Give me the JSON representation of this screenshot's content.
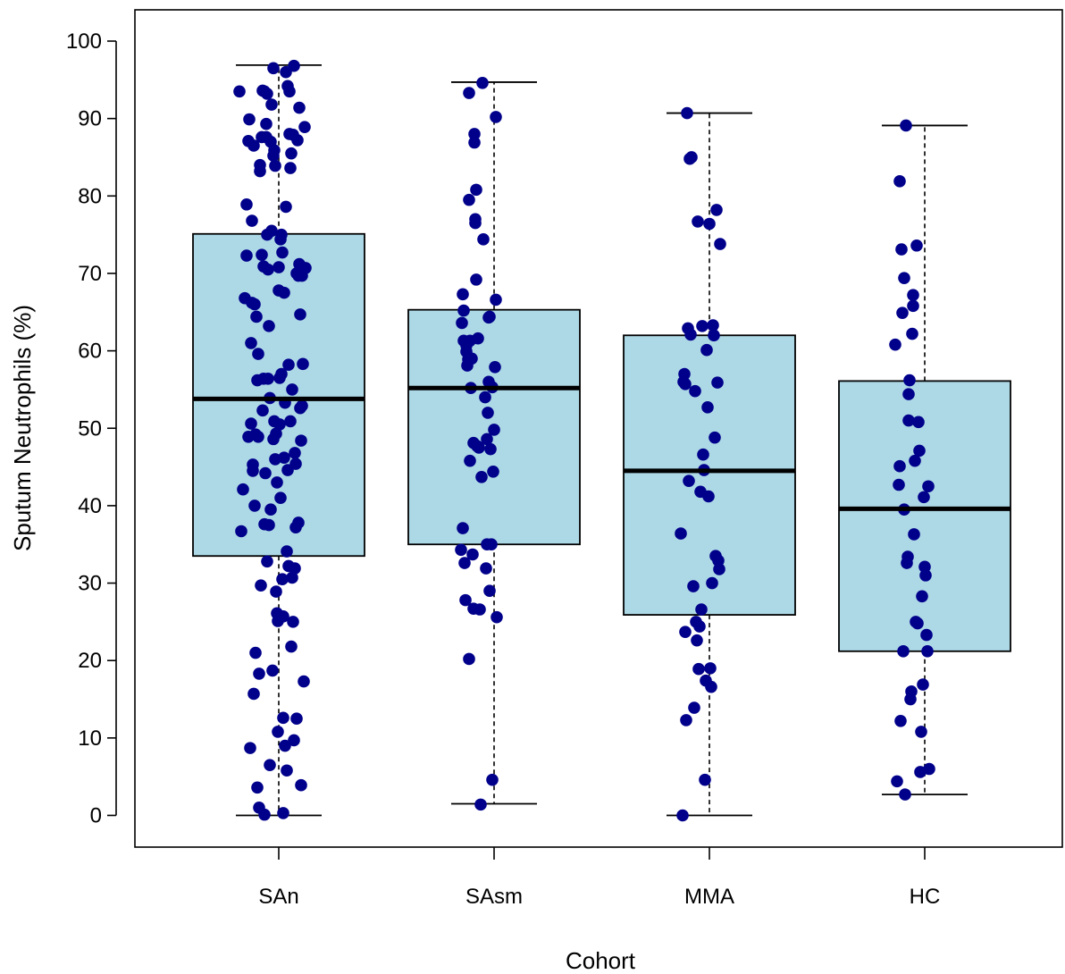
{
  "chart_data": {
    "type": "box",
    "title": "",
    "xlabel": "Cohort",
    "ylabel": "Sputum Neutrophils (%)",
    "ylim": [
      -4,
      108
    ],
    "yticks": [
      0,
      10,
      20,
      30,
      40,
      50,
      60,
      70,
      80,
      90,
      100
    ],
    "categories": [
      "SAn",
      "SAsm",
      "MMA",
      "HC"
    ],
    "colors": {
      "box_fill": "#add8e6",
      "point": "#00008b",
      "line": "#000000"
    },
    "boxes": [
      {
        "name": "SAn",
        "whisker_low": 0,
        "q1": 33.5,
        "median": 53.8,
        "q3": 75.1,
        "whisker_high": 96.9
      },
      {
        "name": "SAsm",
        "whisker_low": 1.5,
        "q1": 35.0,
        "median": 55.2,
        "q3": 65.3,
        "whisker_high": 94.7
      },
      {
        "name": "MMA",
        "whisker_low": 0,
        "q1": 25.9,
        "median": 44.5,
        "q3": 62.0,
        "whisker_high": 90.7
      },
      {
        "name": "HC",
        "whisker_low": 2.7,
        "q1": 21.2,
        "median": 39.6,
        "q3": 56.1,
        "whisker_high": 89.1
      }
    ],
    "points": [
      [
        [
          -0.44,
          93.5
        ],
        [
          -0.42,
          36.7
        ],
        [
          -0.4,
          42.1
        ],
        [
          -0.38,
          66.8
        ],
        [
          -0.36,
          78.9
        ],
        [
          -0.36,
          72.3
        ],
        [
          -0.34,
          48.9
        ],
        [
          -0.34,
          87.1
        ],
        [
          -0.33,
          89.9
        ],
        [
          -0.32,
          8.7
        ],
        [
          -0.31,
          50.6
        ],
        [
          -0.31,
          61.0
        ],
        [
          -0.3,
          66.2
        ],
        [
          -0.3,
          76.8
        ],
        [
          -0.29,
          44.5
        ],
        [
          -0.29,
          45.3
        ],
        [
          -0.28,
          15.7
        ],
        [
          -0.28,
          86.5
        ],
        [
          -0.27,
          40.0
        ],
        [
          -0.27,
          66.0
        ],
        [
          -0.26,
          49.2
        ],
        [
          -0.26,
          21.0
        ],
        [
          -0.25,
          64.4
        ],
        [
          -0.24,
          56.2
        ],
        [
          -0.24,
          3.6
        ],
        [
          -0.23,
          59.6
        ],
        [
          -0.23,
          48.9
        ],
        [
          -0.22,
          18.3
        ],
        [
          -0.22,
          1.0
        ],
        [
          -0.21,
          83.2
        ],
        [
          -0.21,
          84.0
        ],
        [
          -0.2,
          29.7
        ],
        [
          -0.19,
          87.6
        ],
        [
          -0.19,
          72.4
        ],
        [
          -0.18,
          93.6
        ],
        [
          -0.18,
          52.3
        ],
        [
          -0.17,
          70.9
        ],
        [
          -0.17,
          56.4
        ],
        [
          -0.16,
          37.6
        ],
        [
          -0.16,
          93.5
        ],
        [
          -0.16,
          0.1
        ],
        [
          -0.15,
          44.2
        ],
        [
          -0.14,
          89.3
        ],
        [
          -0.14,
          87.6
        ],
        [
          -0.13,
          93.2
        ],
        [
          -0.13,
          75.0
        ],
        [
          -0.13,
          32.8
        ],
        [
          -0.12,
          70.5
        ],
        [
          -0.12,
          56.4
        ],
        [
          -0.11,
          63.2
        ],
        [
          -0.11,
          37.5
        ],
        [
          -0.1,
          53.9
        ],
        [
          -0.1,
          6.5
        ],
        [
          -0.09,
          87.0
        ],
        [
          -0.09,
          39.5
        ],
        [
          -0.08,
          91.8
        ],
        [
          -0.08,
          75.5
        ],
        [
          -0.07,
          18.7
        ],
        [
          -0.06,
          85.2
        ],
        [
          -0.06,
          48.6
        ],
        [
          -0.06,
          96.5
        ],
        [
          -0.05,
          85.9
        ],
        [
          -0.05,
          50.9
        ],
        [
          -0.04,
          83.9
        ],
        [
          -0.04,
          46.0
        ],
        [
          -0.03,
          49.3
        ],
        [
          -0.03,
          28.9
        ],
        [
          -0.02,
          26.1
        ],
        [
          -0.02,
          43.0
        ],
        [
          -0.01,
          25.1
        ],
        [
          -0.01,
          10.8
        ],
        [
          0.0,
          67.8
        ],
        [
          0.0,
          70.8
        ],
        [
          0.01,
          56.5
        ],
        [
          0.01,
          50.5
        ],
        [
          0.02,
          41.0
        ],
        [
          0.02,
          74.4
        ],
        [
          0.03,
          75.0
        ],
        [
          0.03,
          57.0
        ],
        [
          0.04,
          72.7
        ],
        [
          0.04,
          30.5
        ],
        [
          0.05,
          25.7
        ],
        [
          0.05,
          12.6
        ],
        [
          0.05,
          0.3
        ],
        [
          0.06,
          46.2
        ],
        [
          0.06,
          67.5
        ],
        [
          0.07,
          53.3
        ],
        [
          0.07,
          9.0
        ],
        [
          0.08,
          78.6
        ],
        [
          0.08,
          96.0
        ],
        [
          0.09,
          34.1
        ],
        [
          0.09,
          5.8
        ],
        [
          0.1,
          44.6
        ],
        [
          0.1,
          94.2
        ],
        [
          0.11,
          58.2
        ],
        [
          0.11,
          32.2
        ],
        [
          0.12,
          88.0
        ],
        [
          0.12,
          93.5
        ],
        [
          0.13,
          83.6
        ],
        [
          0.13,
          50.9
        ],
        [
          0.14,
          85.5
        ],
        [
          0.14,
          21.8
        ],
        [
          0.15,
          30.7
        ],
        [
          0.15,
          55.0
        ],
        [
          0.16,
          87.9
        ],
        [
          0.16,
          25.0
        ],
        [
          0.17,
          9.7
        ],
        [
          0.17,
          96.8
        ],
        [
          0.18,
          31.9
        ],
        [
          0.18,
          46.8
        ],
        [
          0.19,
          45.4
        ],
        [
          0.19,
          37.2
        ],
        [
          0.2,
          70.0
        ],
        [
          0.2,
          12.5
        ],
        [
          0.21,
          87.2
        ],
        [
          0.22,
          69.7
        ],
        [
          0.22,
          37.8
        ],
        [
          0.23,
          91.4
        ],
        [
          0.23,
          71.2
        ],
        [
          0.24,
          64.7
        ],
        [
          0.24,
          52.6
        ],
        [
          0.25,
          48.4
        ],
        [
          0.25,
          3.9
        ],
        [
          0.26,
          52.9
        ],
        [
          0.26,
          69.7
        ],
        [
          0.27,
          58.3
        ],
        [
          0.28,
          17.3
        ],
        [
          0.29,
          88.9
        ],
        [
          0.3,
          70.7
        ]
      ],
      [
        [
          -0.37,
          34.3
        ],
        [
          -0.36,
          63.6
        ],
        [
          -0.35,
          67.3
        ],
        [
          -0.35,
          37.1
        ],
        [
          -0.34,
          65.2
        ],
        [
          -0.34,
          61.3
        ],
        [
          -0.33,
          32.6
        ],
        [
          -0.32,
          27.8
        ],
        [
          -0.31,
          59.9
        ],
        [
          -0.31,
          60.7
        ],
        [
          -0.3,
          58.1
        ],
        [
          -0.29,
          58.9
        ],
        [
          -0.28,
          93.3
        ],
        [
          -0.28,
          20.2
        ],
        [
          -0.28,
          79.5
        ],
        [
          -0.27,
          45.8
        ],
        [
          -0.27,
          61.3
        ],
        [
          -0.26,
          55.2
        ],
        [
          -0.25,
          59.0
        ],
        [
          -0.24,
          33.7
        ],
        [
          -0.23,
          48.1
        ],
        [
          -0.23,
          26.7
        ],
        [
          -0.22,
          88.0
        ],
        [
          -0.22,
          86.9
        ],
        [
          -0.21,
          77.0
        ],
        [
          -0.21,
          76.5
        ],
        [
          -0.2,
          80.8
        ],
        [
          -0.2,
          69.2
        ],
        [
          -0.19,
          47.7
        ],
        [
          -0.18,
          61.6
        ],
        [
          -0.17,
          47.5
        ],
        [
          -0.16,
          26.6
        ],
        [
          -0.15,
          1.4
        ],
        [
          -0.14,
          43.7
        ],
        [
          -0.13,
          94.6
        ],
        [
          -0.12,
          74.4
        ],
        [
          -0.1,
          54.0
        ],
        [
          -0.09,
          31.9
        ],
        [
          -0.08,
          48.6
        ],
        [
          -0.08,
          35.0
        ],
        [
          -0.07,
          52.0
        ],
        [
          -0.06,
          64.3
        ],
        [
          -0.06,
          56.0
        ],
        [
          -0.05,
          64.4
        ],
        [
          -0.05,
          29.0
        ],
        [
          -0.04,
          47.3
        ],
        [
          -0.03,
          35.0
        ],
        [
          -0.02,
          4.6
        ],
        [
          -0.02,
          55.3
        ],
        [
          -0.01,
          44.4
        ],
        [
          0.0,
          49.8
        ],
        [
          0.01,
          57.9
        ],
        [
          0.02,
          66.6
        ],
        [
          0.02,
          90.2
        ],
        [
          0.03,
          25.6
        ]
      ],
      [
        [
          -0.32,
          36.4
        ],
        [
          -0.3,
          0.0
        ],
        [
          -0.29,
          56.0
        ],
        [
          -0.28,
          57.0
        ],
        [
          -0.27,
          55.7
        ],
        [
          -0.27,
          23.7
        ],
        [
          -0.26,
          12.3
        ],
        [
          -0.25,
          90.7
        ],
        [
          -0.24,
          62.9
        ],
        [
          -0.23,
          43.2
        ],
        [
          -0.22,
          84.8
        ],
        [
          -0.21,
          62.1
        ],
        [
          -0.2,
          85.0
        ],
        [
          -0.18,
          29.6
        ],
        [
          -0.17,
          13.9
        ],
        [
          -0.16,
          54.8
        ],
        [
          -0.15,
          25.0
        ],
        [
          -0.14,
          22.6
        ],
        [
          -0.13,
          76.7
        ],
        [
          -0.12,
          18.9
        ],
        [
          -0.11,
          24.4
        ],
        [
          -0.1,
          41.8
        ],
        [
          -0.09,
          26.6
        ],
        [
          -0.08,
          63.2
        ],
        [
          -0.07,
          46.6
        ],
        [
          -0.06,
          44.6
        ],
        [
          -0.05,
          4.6
        ],
        [
          -0.04,
          17.4
        ],
        [
          -0.03,
          60.1
        ],
        [
          -0.02,
          52.7
        ],
        [
          -0.01,
          41.2
        ],
        [
          0.0,
          76.4
        ],
        [
          0.01,
          19.0
        ],
        [
          0.02,
          16.6
        ],
        [
          0.03,
          30.0
        ],
        [
          0.04,
          63.3
        ],
        [
          0.05,
          62.0
        ],
        [
          0.06,
          48.8
        ],
        [
          0.07,
          33.5
        ],
        [
          0.08,
          78.2
        ],
        [
          0.09,
          55.9
        ],
        [
          0.1,
          32.9
        ],
        [
          0.11,
          31.8
        ],
        [
          0.12,
          73.8
        ]
      ],
      [
        [
          -0.33,
          60.8
        ],
        [
          -0.31,
          4.4
        ],
        [
          -0.29,
          42.7
        ],
        [
          -0.28,
          81.9
        ],
        [
          -0.28,
          45.1
        ],
        [
          -0.27,
          12.2
        ],
        [
          -0.26,
          73.1
        ],
        [
          -0.25,
          64.9
        ],
        [
          -0.24,
          21.2
        ],
        [
          -0.23,
          69.4
        ],
        [
          -0.23,
          39.5
        ],
        [
          -0.22,
          2.7
        ],
        [
          -0.21,
          89.1
        ],
        [
          -0.2,
          32.6
        ],
        [
          -0.19,
          33.4
        ],
        [
          -0.18,
          54.4
        ],
        [
          -0.18,
          51.0
        ],
        [
          -0.17,
          56.2
        ],
        [
          -0.16,
          15.0
        ],
        [
          -0.15,
          16.0
        ],
        [
          -0.14,
          62.2
        ],
        [
          -0.13,
          67.2
        ],
        [
          -0.13,
          65.8
        ],
        [
          -0.12,
          36.3
        ],
        [
          -0.11,
          45.8
        ],
        [
          -0.1,
          25.0
        ],
        [
          -0.09,
          73.6
        ],
        [
          -0.08,
          24.8
        ],
        [
          -0.07,
          50.8
        ],
        [
          -0.06,
          47.1
        ],
        [
          -0.05,
          5.6
        ],
        [
          -0.04,
          10.8
        ],
        [
          -0.03,
          28.3
        ],
        [
          -0.02,
          16.9
        ],
        [
          -0.01,
          41.1
        ],
        [
          0.0,
          32.1
        ],
        [
          0.01,
          31.0
        ],
        [
          0.02,
          23.3
        ],
        [
          0.03,
          21.2
        ],
        [
          0.04,
          42.5
        ],
        [
          0.05,
          6.0
        ]
      ]
    ]
  }
}
